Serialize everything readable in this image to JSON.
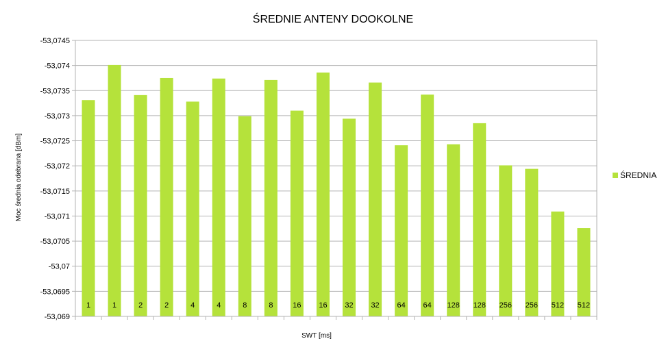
{
  "chart_data": {
    "type": "bar",
    "title": "ŚREDNIE ANTENY DOOKOLNE",
    "xlabel": "SWT [ms]",
    "ylabel": "Moc średnia odebrana [dBm]",
    "ylim": [
      -53.069,
      -53.0745
    ],
    "ytick_step": 0.0005,
    "grid": true,
    "legend_position": "right",
    "categories": [
      "1",
      "1",
      "2",
      "2",
      "4",
      "4",
      "8",
      "8",
      "16",
      "16",
      "32",
      "32",
      "64",
      "64",
      "128",
      "128",
      "256",
      "256",
      "512",
      "512"
    ],
    "series": [
      {
        "name": "ŚREDNIA",
        "color": "#b5e23b",
        "values": [
          -53.07331,
          -53.07401,
          -53.07341,
          -53.07375,
          -53.07328,
          -53.07374,
          -53.07299,
          -53.07371,
          -53.0731,
          -53.07386,
          -53.07294,
          -53.07366,
          -53.07241,
          -53.07342,
          -53.07243,
          -53.07285,
          -53.07201,
          -53.07194,
          -53.07109,
          -53.07076
        ]
      }
    ]
  }
}
